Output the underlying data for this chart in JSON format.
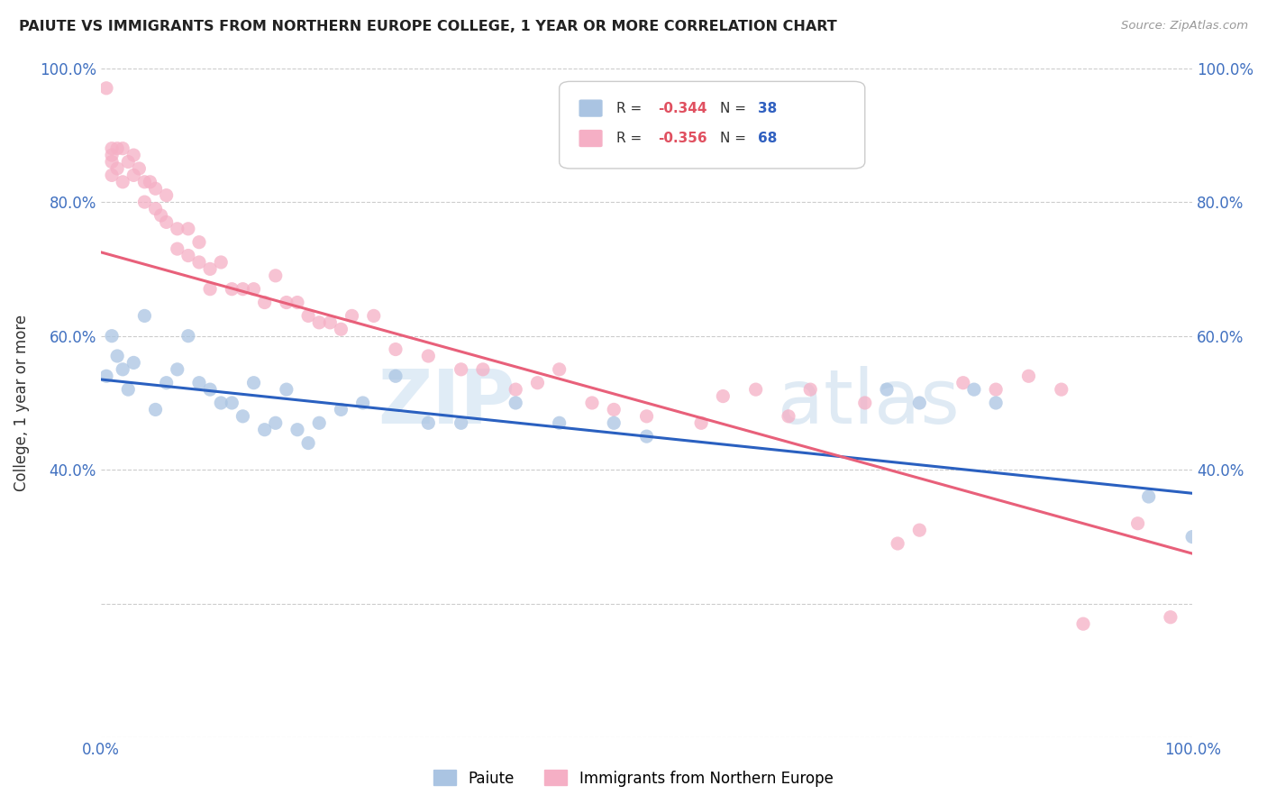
{
  "title": "PAIUTE VS IMMIGRANTS FROM NORTHERN EUROPE COLLEGE, 1 YEAR OR MORE CORRELATION CHART",
  "source": "Source: ZipAtlas.com",
  "ylabel": "College, 1 year or more",
  "legend_blue_label": "Paiute",
  "legend_pink_label": "Immigrants from Northern Europe",
  "blue_color": "#aac4e2",
  "pink_color": "#f5afc5",
  "blue_line_color": "#2a60c0",
  "pink_line_color": "#e8607a",
  "r_value_color": "#e05060",
  "n_value_color": "#3060c0",
  "watermark_zip": "ZIP",
  "watermark_atlas": "atlas",
  "blue_line_x": [
    0.0,
    1.0
  ],
  "blue_line_y": [
    0.535,
    0.365
  ],
  "pink_line_x": [
    0.0,
    1.0
  ],
  "pink_line_y": [
    0.725,
    0.275
  ],
  "blue_scatter_x": [
    0.005,
    0.01,
    0.015,
    0.02,
    0.025,
    0.03,
    0.04,
    0.05,
    0.06,
    0.07,
    0.08,
    0.09,
    0.1,
    0.11,
    0.12,
    0.13,
    0.14,
    0.15,
    0.16,
    0.17,
    0.18,
    0.19,
    0.2,
    0.22,
    0.24,
    0.27,
    0.3,
    0.33,
    0.38,
    0.42,
    0.47,
    0.5,
    0.72,
    0.75,
    0.8,
    0.82,
    0.96,
    1.0
  ],
  "blue_scatter_y": [
    0.54,
    0.6,
    0.57,
    0.55,
    0.52,
    0.56,
    0.63,
    0.49,
    0.53,
    0.55,
    0.6,
    0.53,
    0.52,
    0.5,
    0.5,
    0.48,
    0.53,
    0.46,
    0.47,
    0.52,
    0.46,
    0.44,
    0.47,
    0.49,
    0.5,
    0.54,
    0.47,
    0.47,
    0.5,
    0.47,
    0.47,
    0.45,
    0.52,
    0.5,
    0.52,
    0.5,
    0.36,
    0.3
  ],
  "pink_scatter_x": [
    0.005,
    0.01,
    0.01,
    0.01,
    0.01,
    0.015,
    0.015,
    0.02,
    0.02,
    0.025,
    0.03,
    0.03,
    0.035,
    0.04,
    0.04,
    0.045,
    0.05,
    0.05,
    0.055,
    0.06,
    0.06,
    0.07,
    0.07,
    0.08,
    0.08,
    0.09,
    0.09,
    0.1,
    0.1,
    0.11,
    0.12,
    0.13,
    0.14,
    0.15,
    0.16,
    0.17,
    0.18,
    0.19,
    0.2,
    0.21,
    0.22,
    0.23,
    0.25,
    0.27,
    0.3,
    0.33,
    0.35,
    0.38,
    0.4,
    0.42,
    0.45,
    0.47,
    0.5,
    0.55,
    0.57,
    0.6,
    0.63,
    0.65,
    0.7,
    0.73,
    0.75,
    0.79,
    0.82,
    0.85,
    0.88,
    0.9,
    0.95,
    0.98
  ],
  "pink_scatter_y": [
    0.97,
    0.88,
    0.87,
    0.86,
    0.84,
    0.88,
    0.85,
    0.88,
    0.83,
    0.86,
    0.87,
    0.84,
    0.85,
    0.83,
    0.8,
    0.83,
    0.82,
    0.79,
    0.78,
    0.81,
    0.77,
    0.76,
    0.73,
    0.76,
    0.72,
    0.74,
    0.71,
    0.7,
    0.67,
    0.71,
    0.67,
    0.67,
    0.67,
    0.65,
    0.69,
    0.65,
    0.65,
    0.63,
    0.62,
    0.62,
    0.61,
    0.63,
    0.63,
    0.58,
    0.57,
    0.55,
    0.55,
    0.52,
    0.53,
    0.55,
    0.5,
    0.49,
    0.48,
    0.47,
    0.51,
    0.52,
    0.48,
    0.52,
    0.5,
    0.29,
    0.31,
    0.53,
    0.52,
    0.54,
    0.52,
    0.17,
    0.32,
    0.18
  ],
  "xlim": [
    0.0,
    1.0
  ],
  "ylim": [
    0.0,
    1.0
  ],
  "ytick_vals": [
    0.0,
    0.2,
    0.4,
    0.6,
    0.8,
    1.0
  ],
  "ytick_labels_left": [
    "",
    "",
    "40.0%",
    "60.0%",
    "80.0%",
    "100.0%"
  ],
  "ytick_labels_right": [
    "",
    "",
    "40.0%",
    "60.0%",
    "80.0%",
    "100.0%"
  ],
  "xtick_vals": [
    0.0,
    0.25,
    0.5,
    0.75,
    1.0
  ],
  "xtick_labels": [
    "0.0%",
    "",
    "",
    "",
    "100.0%"
  ],
  "background_color": "#ffffff",
  "grid_color": "#cccccc",
  "tick_color": "#4070c0",
  "marker_size": 120
}
